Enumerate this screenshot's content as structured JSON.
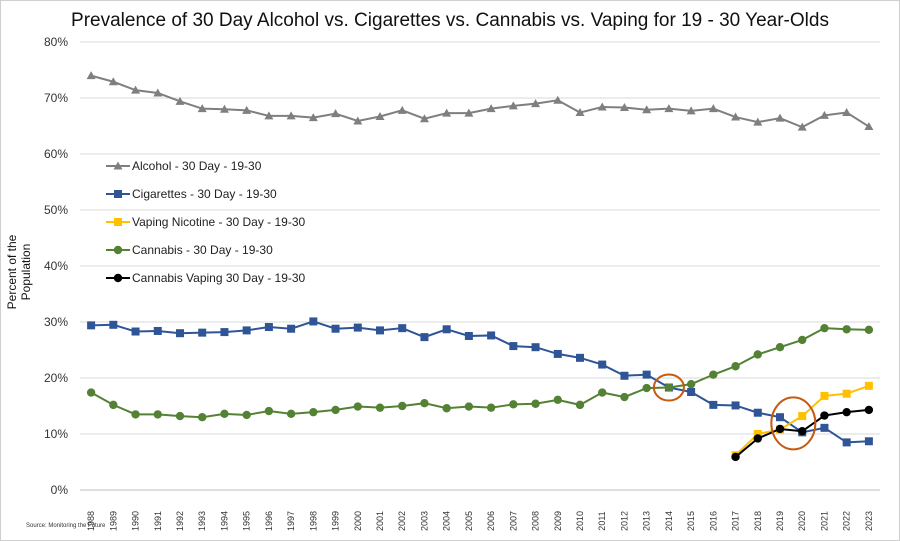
{
  "chart_data": {
    "type": "line",
    "title": "Prevalence of 30 Day Alcohol vs. Cigarettes vs. Cannabis vs. Vaping for 19 - 30 Year-Olds",
    "ylabel": "Percent of the Population",
    "xlabel": "",
    "source": "Source: Monitoring the Future",
    "ylim": [
      0,
      80
    ],
    "yticks": [
      "0%",
      "10%",
      "20%",
      "30%",
      "40%",
      "50%",
      "60%",
      "70%",
      "80%"
    ],
    "grid": true,
    "legend_position": "left-middle",
    "x": [
      "1988",
      "1989",
      "1990",
      "1991",
      "1992",
      "1993",
      "1994",
      "1995",
      "1996",
      "1997",
      "1998",
      "1999",
      "2000",
      "2001",
      "2002",
      "2003",
      "2004",
      "2005",
      "2006",
      "2007",
      "2008",
      "2009",
      "2010",
      "2011",
      "2012",
      "2013",
      "2014",
      "2015",
      "2016",
      "2017",
      "2018",
      "2019",
      "2020",
      "2021",
      "2022",
      "2023"
    ],
    "series": [
      {
        "name": "Alcohol - 30 Day - 19-30",
        "color": "#7f7f7f",
        "marker": "triangle",
        "values": [
          74.0,
          72.9,
          71.4,
          70.9,
          69.4,
          68.1,
          68.0,
          67.8,
          66.8,
          66.8,
          66.5,
          67.2,
          65.9,
          66.7,
          67.8,
          66.3,
          67.3,
          67.3,
          68.1,
          68.6,
          69.0,
          69.6,
          67.4,
          68.4,
          68.3,
          67.9,
          68.1,
          67.7,
          68.1,
          66.6,
          65.7,
          66.4,
          64.8,
          66.9,
          67.4,
          64.9
        ]
      },
      {
        "name": "Cigarettes - 30 Day - 19-30",
        "color": "#2f5597",
        "marker": "square",
        "values": [
          29.4,
          29.5,
          28.3,
          28.4,
          28.0,
          28.1,
          28.2,
          28.5,
          29.1,
          28.8,
          30.1,
          28.8,
          29.0,
          28.5,
          28.9,
          27.3,
          28.7,
          27.5,
          27.6,
          25.7,
          25.5,
          24.3,
          23.6,
          22.4,
          20.4,
          20.6,
          18.3,
          17.5,
          15.2,
          15.1,
          13.8,
          13.0,
          10.3,
          11.1,
          8.5,
          8.7
        ]
      },
      {
        "name": "Vaping Nicotine - 30 Day - 19-30",
        "color": "#ffc000",
        "marker": "square",
        "values": [
          null,
          null,
          null,
          null,
          null,
          null,
          null,
          null,
          null,
          null,
          null,
          null,
          null,
          null,
          null,
          null,
          null,
          null,
          null,
          null,
          null,
          null,
          null,
          null,
          null,
          null,
          null,
          null,
          null,
          6.2,
          10.0,
          10.8,
          13.2,
          16.8,
          17.2,
          18.6
        ]
      },
      {
        "name": "Cannabis - 30 Day - 19-30",
        "color": "#548235",
        "marker": "circle",
        "values": [
          17.4,
          15.2,
          13.5,
          13.5,
          13.2,
          13.0,
          13.6,
          13.4,
          14.1,
          13.6,
          13.9,
          14.3,
          14.9,
          14.7,
          15.0,
          15.5,
          14.6,
          14.9,
          14.7,
          15.3,
          15.4,
          16.1,
          15.2,
          17.4,
          16.6,
          18.2,
          18.3,
          18.9,
          20.6,
          22.1,
          24.2,
          25.5,
          26.8,
          28.9,
          28.7,
          28.6
        ]
      },
      {
        "name": "Cannabis Vaping  30 Day - 19-30",
        "color": "#000000",
        "marker": "circle",
        "values": [
          null,
          null,
          null,
          null,
          null,
          null,
          null,
          null,
          null,
          null,
          null,
          null,
          null,
          null,
          null,
          null,
          null,
          null,
          null,
          null,
          null,
          null,
          null,
          null,
          null,
          null,
          null,
          null,
          null,
          5.9,
          9.2,
          10.9,
          10.5,
          13.3,
          13.9,
          14.3
        ]
      }
    ],
    "annotations": [
      {
        "type": "ellipse",
        "color": "#c55a11",
        "x": "2014",
        "y": 18.3
      },
      {
        "type": "ellipse",
        "color": "#c55a11",
        "x": "2019.6",
        "y": 11.9
      }
    ]
  }
}
